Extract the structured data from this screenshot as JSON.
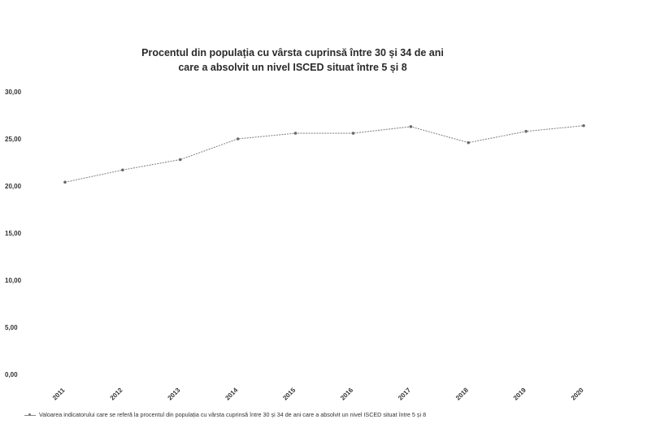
{
  "chart_data": {
    "type": "line",
    "title": "Procentul din populația cu vârsta cuprinsă între 30 și 34 de ani care a absolvit un nivel ISCED situat între 5 și 8",
    "title_lines": [
      "Procentul din populația cu vârsta cuprinsă între 30 și 34 de ani",
      "care a absolvit un nivel ISCED situat între 5 și 8"
    ],
    "xlabel": "",
    "ylabel": "",
    "categories": [
      "2011",
      "2012",
      "2013",
      "2014",
      "2015",
      "2016",
      "2017",
      "2018",
      "2019",
      "2020"
    ],
    "y_ticks": [
      "0,00",
      "5,00",
      "10,00",
      "15,00",
      "20,00",
      "25,00",
      "30,00"
    ],
    "ylim": [
      0,
      30
    ],
    "grid": false,
    "legend_position": "bottom",
    "series": [
      {
        "name": "Valoarea indicatorului care se referă la procentul din populația cu vârsta cuprinsă între 30 și 34 de ani care a absolvit un nivel ISCED situat între 5 și 8",
        "values": [
          20.4,
          21.7,
          22.8,
          25.0,
          25.6,
          25.6,
          26.3,
          24.6,
          25.8,
          26.4
        ],
        "color": "#888888"
      }
    ]
  }
}
